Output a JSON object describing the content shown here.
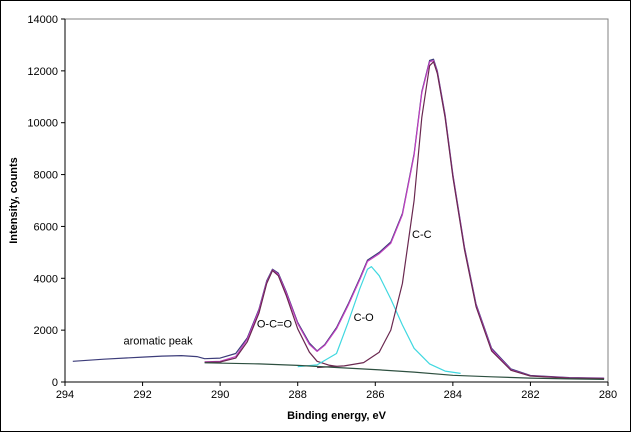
{
  "chart_data": {
    "type": "line",
    "xlabel": "Binding energy, eV",
    "ylabel": "Intensity, counts",
    "xlim": [
      294,
      280
    ],
    "ylim": [
      0,
      14000
    ],
    "x_ticks": [
      "294",
      "292",
      "290",
      "288",
      "286",
      "284",
      "282",
      "280"
    ],
    "y_ticks": [
      "0",
      "2000",
      "4000",
      "6000",
      "8000",
      "10000",
      "12000",
      "14000"
    ],
    "x_reversed": true,
    "grid": false,
    "legend": "none",
    "annotations": [
      {
        "text": "aromatic peak",
        "x": 291.6,
        "y": 1450
      },
      {
        "text": "O-C=O",
        "x": 288.6,
        "y": 2100
      },
      {
        "text": "C-O",
        "x": 286.3,
        "y": 2350
      },
      {
        "text": "C-C",
        "x": 284.8,
        "y": 5550
      }
    ],
    "colors": {
      "spectrum": "#3d3d7a",
      "envelope": "#c040c0",
      "component": "#6a2850",
      "co_component": "#40d8e0",
      "background": "#2e5040"
    },
    "series": [
      {
        "values": [
          [
            293.8,
            800
          ],
          [
            293.0,
            880
          ],
          [
            292.0,
            960
          ],
          [
            291.5,
            1000
          ],
          [
            291.0,
            1020
          ],
          [
            290.6,
            980
          ],
          [
            290.4,
            900
          ],
          [
            290.0,
            920
          ],
          [
            289.6,
            1100
          ],
          [
            289.3,
            1700
          ],
          [
            289.0,
            2800
          ],
          [
            288.8,
            3900
          ],
          [
            288.65,
            4350
          ],
          [
            288.5,
            4200
          ],
          [
            288.3,
            3500
          ],
          [
            288.0,
            2300
          ],
          [
            287.7,
            1500
          ],
          [
            287.5,
            1200
          ],
          [
            287.3,
            1450
          ],
          [
            287.0,
            2100
          ],
          [
            286.7,
            3000
          ],
          [
            286.4,
            4000
          ],
          [
            286.2,
            4700
          ],
          [
            285.9,
            5000
          ],
          [
            285.6,
            5400
          ],
          [
            285.3,
            6500
          ],
          [
            285.0,
            8800
          ],
          [
            284.8,
            11200
          ],
          [
            284.6,
            12400
          ],
          [
            284.5,
            12450
          ],
          [
            284.4,
            12000
          ],
          [
            284.2,
            10300
          ],
          [
            284.0,
            8000
          ],
          [
            283.7,
            5200
          ],
          [
            283.4,
            3000
          ],
          [
            283.0,
            1300
          ],
          [
            282.5,
            500
          ],
          [
            282.0,
            250
          ],
          [
            281.0,
            170
          ],
          [
            280.1,
            150
          ]
        ]
      },
      {
        "values": [
          [
            290.4,
            780
          ],
          [
            290.0,
            800
          ],
          [
            289.6,
            980
          ],
          [
            289.3,
            1650
          ],
          [
            289.0,
            2750
          ],
          [
            288.8,
            3850
          ],
          [
            288.65,
            4320
          ],
          [
            288.5,
            4150
          ],
          [
            288.3,
            3450
          ],
          [
            288.0,
            2250
          ],
          [
            287.7,
            1450
          ],
          [
            287.5,
            1180
          ],
          [
            287.3,
            1420
          ],
          [
            287.0,
            2050
          ],
          [
            286.7,
            2950
          ],
          [
            286.4,
            3950
          ],
          [
            286.2,
            4650
          ],
          [
            285.9,
            4950
          ],
          [
            285.6,
            5350
          ],
          [
            285.3,
            6450
          ],
          [
            285.0,
            8750
          ],
          [
            284.8,
            11150
          ],
          [
            284.6,
            12350
          ],
          [
            284.5,
            12400
          ],
          [
            284.4,
            11950
          ],
          [
            284.2,
            10250
          ],
          [
            284.0,
            7950
          ],
          [
            283.7,
            5150
          ],
          [
            283.4,
            2950
          ],
          [
            283.0,
            1250
          ],
          [
            282.5,
            470
          ],
          [
            282.0,
            240
          ],
          [
            281.0,
            160
          ],
          [
            280.1,
            140
          ]
        ]
      },
      {
        "values": [
          [
            290.4,
            760
          ],
          [
            290.0,
            770
          ],
          [
            289.6,
            920
          ],
          [
            289.3,
            1550
          ],
          [
            289.0,
            2650
          ],
          [
            288.8,
            3800
          ],
          [
            288.65,
            4300
          ],
          [
            288.5,
            4100
          ],
          [
            288.3,
            3350
          ],
          [
            288.0,
            2050
          ],
          [
            287.7,
            1150
          ],
          [
            287.5,
            800
          ],
          [
            287.2,
            650
          ],
          [
            287.0,
            600
          ]
        ]
      },
      {
        "values": [
          [
            288.0,
            590
          ],
          [
            287.5,
            660
          ],
          [
            287.0,
            1100
          ],
          [
            286.7,
            2300
          ],
          [
            286.4,
            3600
          ],
          [
            286.2,
            4350
          ],
          [
            286.1,
            4450
          ],
          [
            285.9,
            4100
          ],
          [
            285.6,
            3200
          ],
          [
            285.3,
            2200
          ],
          [
            285.0,
            1300
          ],
          [
            284.6,
            700
          ],
          [
            284.2,
            420
          ],
          [
            283.8,
            330
          ]
        ]
      },
      {
        "values": [
          [
            287.5,
            560
          ],
          [
            286.8,
            620
          ],
          [
            286.3,
            750
          ],
          [
            285.9,
            1150
          ],
          [
            285.6,
            2000
          ],
          [
            285.3,
            3800
          ],
          [
            285.0,
            7000
          ],
          [
            284.8,
            10200
          ],
          [
            284.6,
            12200
          ],
          [
            284.5,
            12350
          ],
          [
            284.4,
            11900
          ],
          [
            284.2,
            10200
          ],
          [
            284.0,
            7900
          ],
          [
            283.7,
            5100
          ],
          [
            283.4,
            2900
          ],
          [
            283.0,
            1200
          ],
          [
            282.5,
            450
          ],
          [
            282.0,
            230
          ],
          [
            281.0,
            150
          ],
          [
            280.1,
            130
          ]
        ]
      },
      {
        "values": [
          [
            290.4,
            740
          ],
          [
            289.0,
            700
          ],
          [
            288.0,
            640
          ],
          [
            287.0,
            560
          ],
          [
            286.0,
            480
          ],
          [
            285.0,
            380
          ],
          [
            284.0,
            260
          ],
          [
            283.0,
            200
          ],
          [
            282.0,
            150
          ],
          [
            281.0,
            120
          ],
          [
            280.1,
            100
          ]
        ]
      }
    ]
  }
}
